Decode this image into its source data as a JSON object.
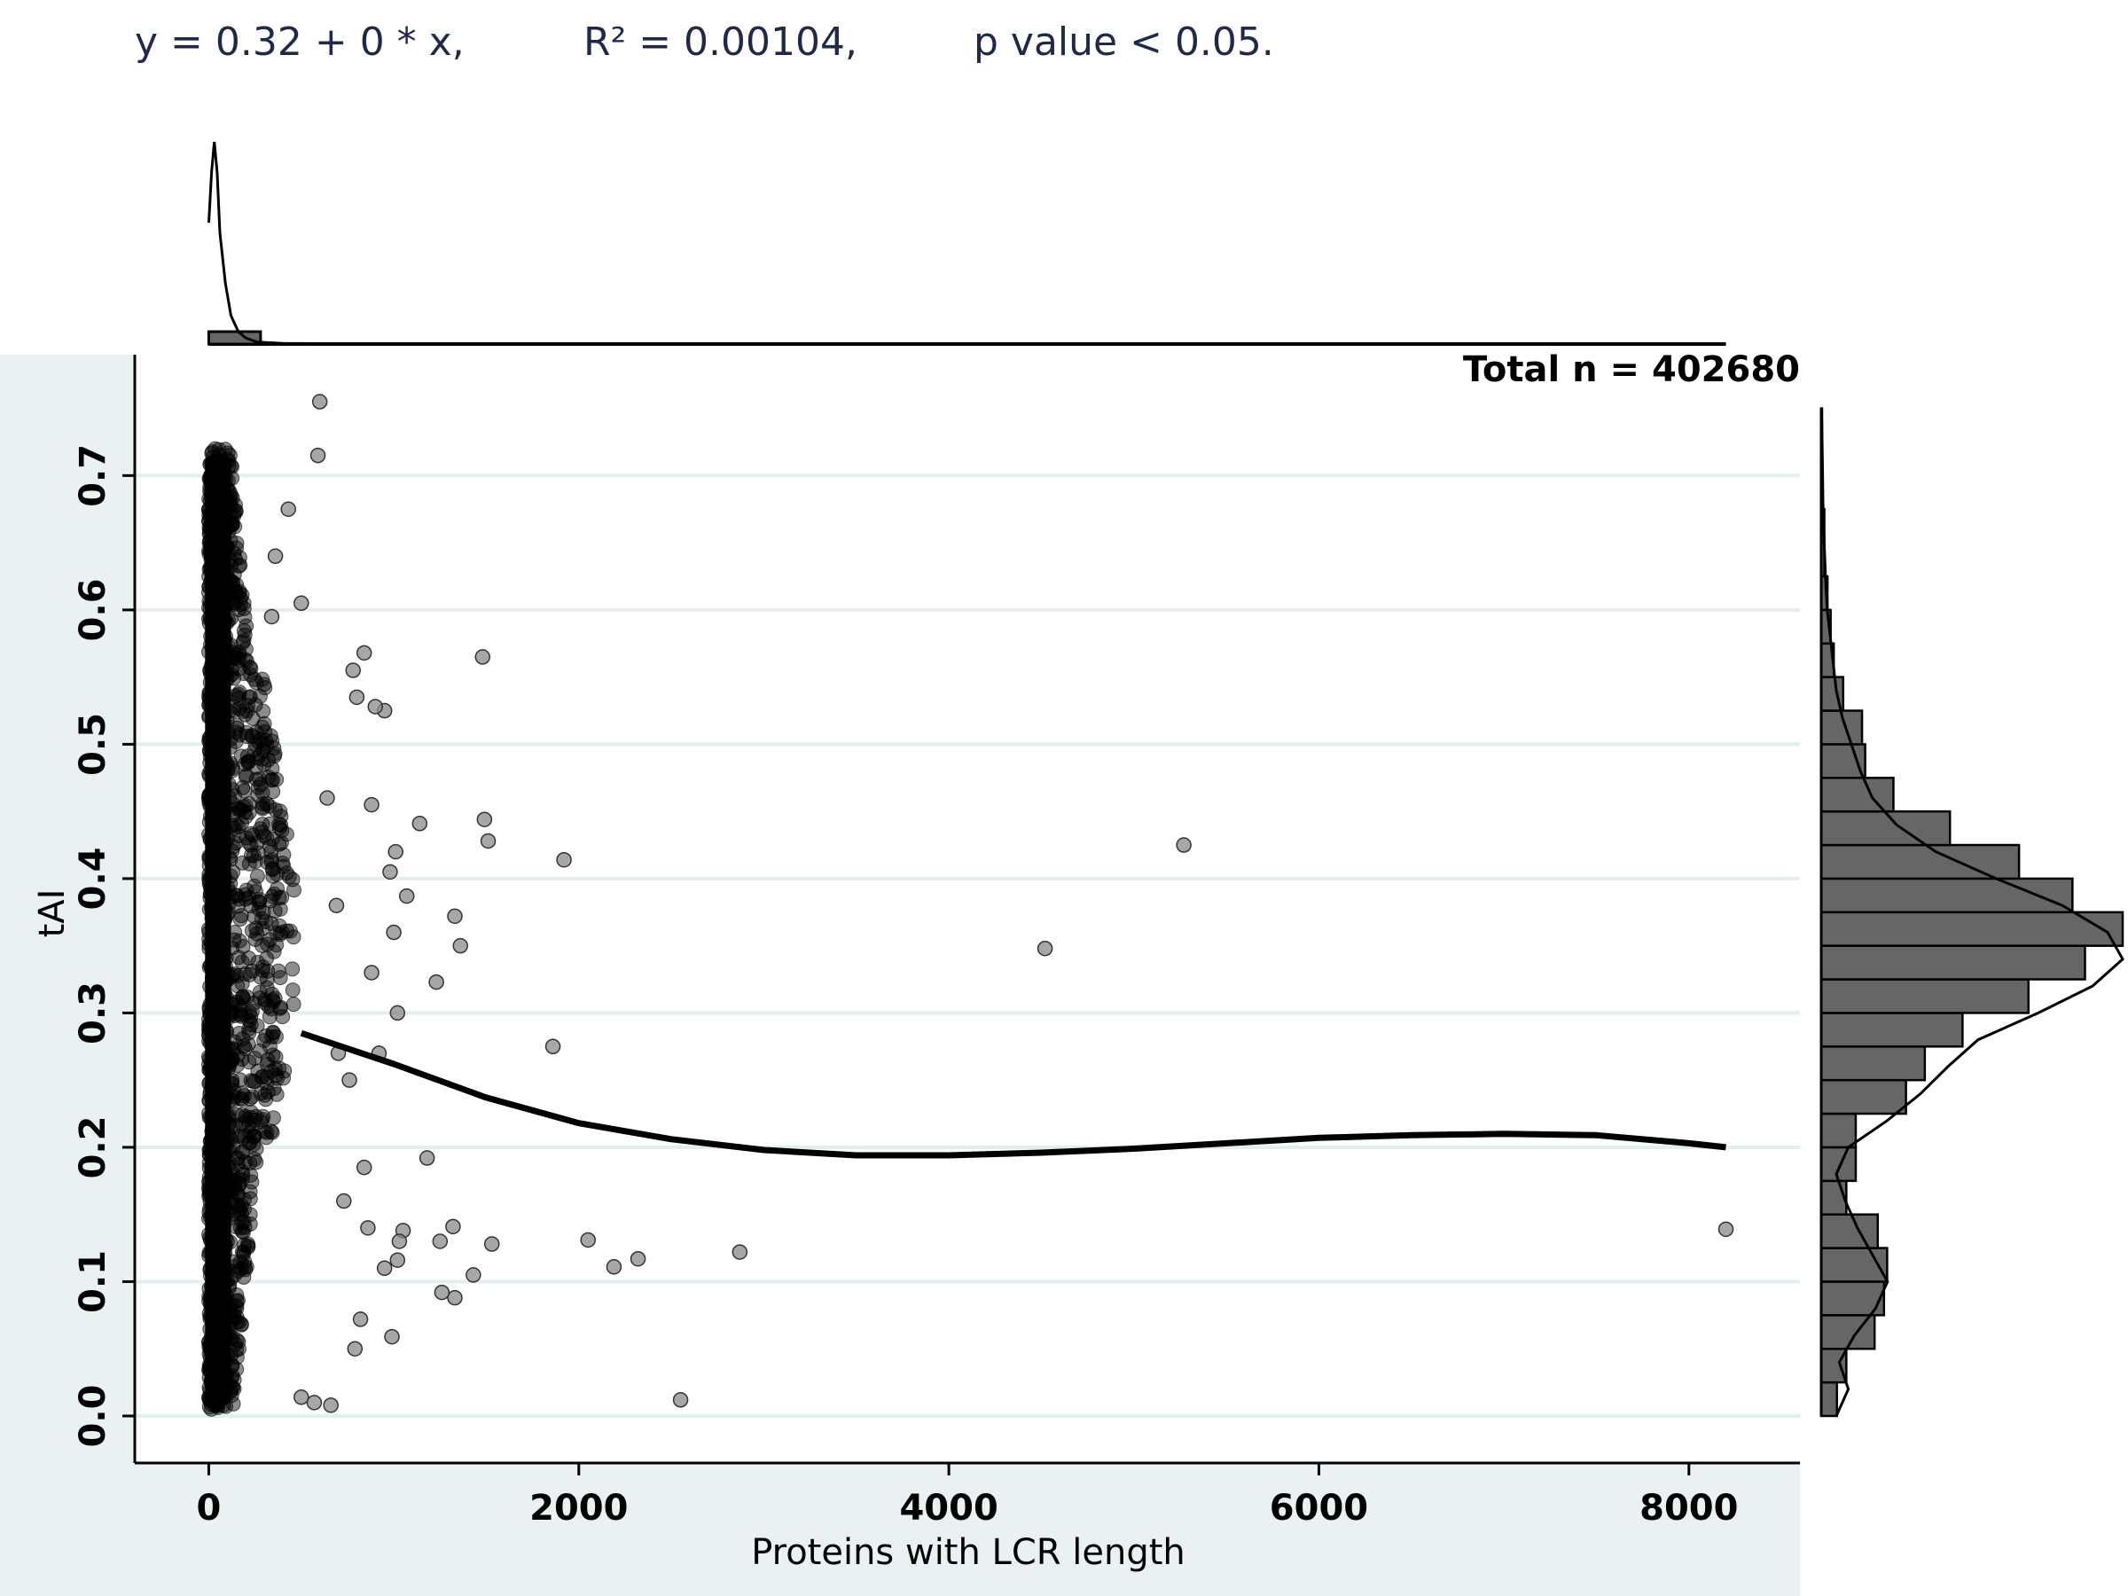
{
  "annotations": {
    "equation": "y = 0.32 + 0 * x,",
    "r_squared": "R² = 0.00104,",
    "p_value": "p value < 0.05.",
    "total_n": "Total n = 402680"
  },
  "colors": {
    "background_panel": "#e9f1f2",
    "gridline": "#e3eeee",
    "points": "#000000",
    "bars": "#666666",
    "text": "#1f2a4a"
  },
  "chart_data": {
    "type": "scatter",
    "xlabel": "Proteins with LCR length",
    "ylabel": "tAI",
    "xlim": [
      -400,
      8600
    ],
    "ylim": [
      -0.035,
      0.79
    ],
    "x_ticks": [
      0,
      2000,
      4000,
      6000,
      8000
    ],
    "x_tick_labels": [
      "0",
      "2000",
      "4000",
      "6000",
      "8000"
    ],
    "y_ticks": [
      0.0,
      0.1,
      0.2,
      0.3,
      0.4,
      0.5,
      0.6,
      0.7
    ],
    "y_tick_labels": [
      "0.0",
      "0.1",
      "0.2",
      "0.3",
      "0.4",
      "0.5",
      "0.6",
      "0.7"
    ],
    "grid": "horizontal",
    "total_n": 402680,
    "outliers": [
      [
        5270,
        0.425
      ],
      [
        4520,
        0.348
      ],
      [
        8200,
        0.139
      ],
      [
        2550,
        0.012
      ],
      [
        2870,
        0.122
      ],
      [
        2320,
        0.117
      ],
      [
        2190,
        0.111
      ],
      [
        2050,
        0.131
      ],
      [
        1920,
        0.414
      ],
      [
        1860,
        0.275
      ],
      [
        1480,
        0.565
      ],
      [
        1490,
        0.444
      ],
      [
        1510,
        0.428
      ],
      [
        1530,
        0.128
      ],
      [
        1430,
        0.105
      ],
      [
        1360,
        0.35
      ],
      [
        1330,
        0.372
      ],
      [
        1320,
        0.141
      ],
      [
        1330,
        0.088
      ],
      [
        1260,
        0.092
      ],
      [
        1250,
        0.13
      ],
      [
        1230,
        0.323
      ],
      [
        1180,
        0.192
      ],
      [
        1140,
        0.441
      ],
      [
        1070,
        0.387
      ],
      [
        1050,
        0.138
      ],
      [
        1030,
        0.13
      ],
      [
        1020,
        0.116
      ],
      [
        1010,
        0.42
      ],
      [
        1020,
        0.3
      ],
      [
        1000,
        0.36
      ],
      [
        990,
        0.059
      ],
      [
        980,
        0.405
      ],
      [
        950,
        0.525
      ],
      [
        900,
        0.528
      ],
      [
        880,
        0.455
      ],
      [
        840,
        0.568
      ],
      [
        780,
        0.555
      ],
      [
        800,
        0.535
      ],
      [
        600,
        0.755
      ],
      [
        590,
        0.715
      ],
      [
        430,
        0.675
      ],
      [
        360,
        0.64
      ],
      [
        340,
        0.595
      ],
      [
        500,
        0.605
      ],
      [
        660,
        0.008
      ],
      [
        570,
        0.01
      ],
      [
        500,
        0.014
      ],
      [
        820,
        0.072
      ],
      [
        790,
        0.05
      ],
      [
        730,
        0.16
      ],
      [
        760,
        0.25
      ],
      [
        840,
        0.185
      ],
      [
        700,
        0.27
      ],
      [
        880,
        0.33
      ],
      [
        920,
        0.27
      ],
      [
        860,
        0.14
      ],
      [
        950,
        0.11
      ],
      [
        640,
        0.46
      ],
      [
        690,
        0.38
      ]
    ],
    "dense_cluster": {
      "x_range": [
        0,
        500
      ],
      "y_range": [
        0.005,
        0.72
      ],
      "note": "overlapping points"
    },
    "fit_curve": {
      "x": [
        500,
        1000,
        1500,
        2000,
        2500,
        3000,
        3500,
        4000,
        4500,
        5000,
        5500,
        6000,
        6500,
        7000,
        7500,
        8000,
        8200
      ],
      "y": [
        0.285,
        0.262,
        0.237,
        0.218,
        0.206,
        0.198,
        0.194,
        0.194,
        0.196,
        0.199,
        0.203,
        0.207,
        0.209,
        0.21,
        0.209,
        0.203,
        0.2
      ]
    },
    "x_marginal": {
      "bins": [
        {
          "x0": 0,
          "x1": 280,
          "count": 1
        }
      ],
      "density": {
        "x": [
          0,
          15,
          30,
          45,
          60,
          90,
          120,
          160,
          200,
          260,
          400,
          800,
          1500,
          3000,
          8200
        ],
        "y": [
          0.6,
          0.85,
          1.0,
          0.85,
          0.55,
          0.3,
          0.14,
          0.06,
          0.03,
          0.01,
          0.003,
          0.001,
          0.0005,
          0.0,
          0.0
        ]
      }
    },
    "y_marginal": {
      "bin_edges": [
        0.0,
        0.025,
        0.05,
        0.075,
        0.1,
        0.125,
        0.15,
        0.175,
        0.2,
        0.225,
        0.25,
        0.275,
        0.3,
        0.325,
        0.35,
        0.375,
        0.4,
        0.425,
        0.45,
        0.475,
        0.5,
        0.525,
        0.55,
        0.575,
        0.6,
        0.625,
        0.65,
        0.675,
        0.7,
        0.725,
        0.75
      ],
      "counts": [
        0.05,
        0.08,
        0.17,
        0.2,
        0.21,
        0.18,
        0.08,
        0.11,
        0.11,
        0.27,
        0.33,
        0.45,
        0.66,
        0.84,
        0.96,
        0.8,
        0.63,
        0.41,
        0.23,
        0.14,
        0.13,
        0.07,
        0.04,
        0.03,
        0.02,
        0.01,
        0.01,
        0.005,
        0.003,
        0.002
      ],
      "density": {
        "y": [
          0.0,
          0.02,
          0.04,
          0.06,
          0.08,
          0.1,
          0.12,
          0.14,
          0.16,
          0.18,
          0.2,
          0.22,
          0.24,
          0.26,
          0.28,
          0.3,
          0.32,
          0.34,
          0.36,
          0.38,
          0.4,
          0.42,
          0.44,
          0.46,
          0.48,
          0.5,
          0.52,
          0.54,
          0.56,
          0.58,
          0.6,
          0.62,
          0.65,
          0.68,
          0.71,
          0.74,
          0.75
        ],
        "v": [
          0.05,
          0.09,
          0.06,
          0.11,
          0.18,
          0.22,
          0.17,
          0.12,
          0.08,
          0.05,
          0.09,
          0.22,
          0.33,
          0.42,
          0.52,
          0.72,
          0.9,
          1.0,
          0.95,
          0.8,
          0.58,
          0.38,
          0.25,
          0.17,
          0.13,
          0.1,
          0.07,
          0.05,
          0.04,
          0.03,
          0.02,
          0.015,
          0.01,
          0.006,
          0.004,
          0.002,
          0.0
        ]
      }
    }
  }
}
